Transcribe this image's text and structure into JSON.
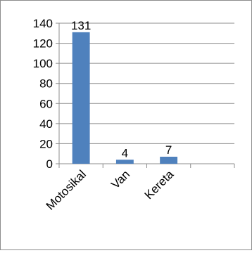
{
  "chart_data": {
    "type": "bar",
    "categories": [
      "Motosikal",
      "Van",
      "Kereta",
      ""
    ],
    "values": [
      131,
      4,
      7,
      null
    ],
    "data_labels": [
      "131",
      "4",
      "7",
      ""
    ],
    "ylim": [
      0,
      140
    ],
    "yticks": [
      0,
      20,
      40,
      60,
      80,
      100,
      120,
      140
    ],
    "ytick_labels": [
      "0",
      "20",
      "40",
      "60",
      "80",
      "100",
      "120",
      "140"
    ],
    "grid": true,
    "legend": "none",
    "colors": {
      "bar": "#4f81bd",
      "grid": "#8c8c8c",
      "axis": "#8c8c8c"
    }
  }
}
